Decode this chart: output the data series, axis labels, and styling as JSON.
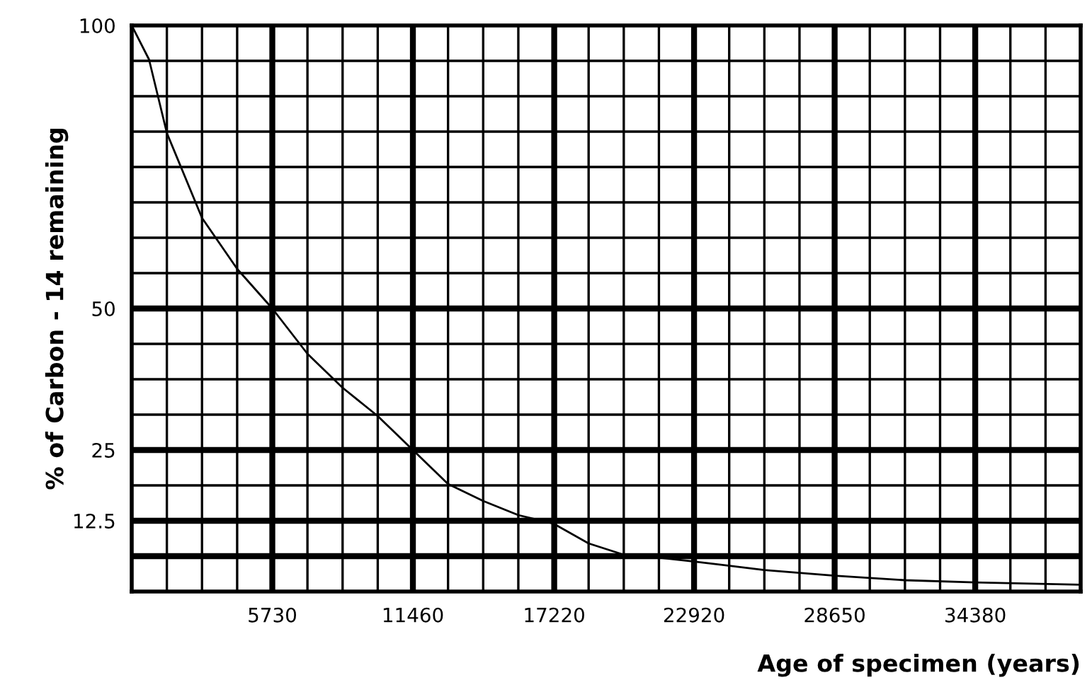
{
  "chart_data": {
    "type": "line",
    "xlabel": "Age of specimen (years)",
    "ylabel": "% of Carbon - 14 remaining",
    "x": [
      0,
      705,
      1432.5,
      2865,
      4297.5,
      5730,
      7162.5,
      8595,
      10027.5,
      11460,
      12892.5,
      14325,
      15757.5,
      17190,
      18622.5,
      20055,
      21487.5,
      22920,
      25785,
      28650,
      31515,
      34380,
      38677.5
    ],
    "series": [
      {
        "color": "#000000",
        "values": [
          100,
          94,
          81,
          66,
          57,
          50,
          42,
          36,
          31,
          25,
          19,
          16,
          13.5,
          12,
          8.5,
          6.5,
          6,
          5.3,
          3.8,
          2.8,
          2,
          1.6,
          1.2
        ]
      }
    ],
    "xlim": [
      0,
      38677.5
    ],
    "ylim": [
      0,
      100
    ],
    "xticks": [
      {
        "value": 1432.5,
        "label": null
      },
      {
        "value": 2865,
        "label": null
      },
      {
        "value": 4297.5,
        "label": null
      },
      5730,
      {
        "value": 7162.5,
        "label": null
      },
      {
        "value": 8595,
        "label": null
      },
      {
        "value": 10027.5,
        "label": null
      },
      11460,
      {
        "value": 12892.5,
        "label": null
      },
      {
        "value": 14325,
        "label": null
      },
      {
        "value": 15757.5,
        "label": null
      },
      17220,
      {
        "value": 18622.5,
        "label": null
      },
      {
        "value": 20055,
        "label": null
      },
      {
        "value": 21487.5,
        "label": null
      },
      22920,
      {
        "value": 24352.5,
        "label": null
      },
      {
        "value": 25785,
        "label": null
      },
      {
        "value": 27217.5,
        "label": null
      },
      28650,
      {
        "value": 30082.5,
        "label": null
      },
      {
        "value": 31515,
        "label": null
      },
      {
        "value": 32947.5,
        "label": null
      },
      34380,
      {
        "value": 35812.5,
        "label": null
      },
      {
        "value": 37245,
        "label": null
      }
    ],
    "yticks": [
      12.5,
      {
        "value": 18.75,
        "label": null
      },
      25,
      {
        "value": 31.25,
        "label": null
      },
      {
        "value": 37.5,
        "label": null
      },
      {
        "value": 43.75,
        "label": null
      },
      50,
      {
        "value": 56.25,
        "label": null
      },
      {
        "value": 62.5,
        "label": null
      },
      {
        "value": 68.75,
        "label": null
      },
      {
        "value": 75,
        "label": null
      },
      {
        "value": 81.25,
        "label": null
      },
      {
        "value": 87.5,
        "label": null
      },
      {
        "value": 93.75,
        "label": null
      },
      100
    ],
    "ref_lines": [
      {
        "axis": "y",
        "value": 6.25
      }
    ],
    "grid": true,
    "marker": "none",
    "line_style": "solid"
  }
}
